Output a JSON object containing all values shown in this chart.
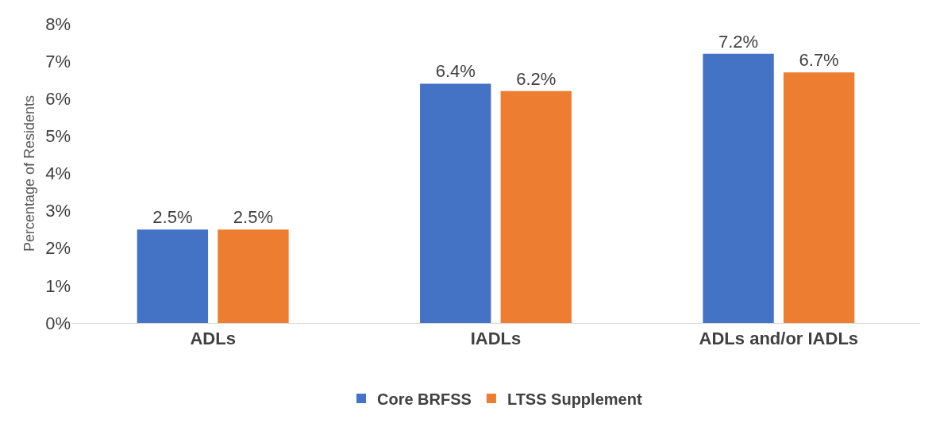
{
  "chart_data": {
    "type": "bar",
    "ylabel": "Percentage of Residents",
    "categories": [
      "ADLs",
      "IADLs",
      "ADLs and/or IADLs"
    ],
    "series": [
      {
        "name": "Core BRFSS",
        "color": "#4472c4",
        "values": [
          2.5,
          6.4,
          7.2
        ],
        "value_labels": [
          "2.5%",
          "6.4%",
          "7.2%"
        ]
      },
      {
        "name": "LTSS Supplement",
        "color": "#ed7d31",
        "values": [
          2.5,
          6.2,
          6.7
        ],
        "value_labels": [
          "2.5%",
          "6.2%",
          "6.7%"
        ]
      }
    ],
    "ylim": [
      0,
      8
    ],
    "yticks": [
      {
        "value": 0,
        "label": "0%"
      },
      {
        "value": 1,
        "label": "1%"
      },
      {
        "value": 2,
        "label": "2%"
      },
      {
        "value": 3,
        "label": "3%"
      },
      {
        "value": 4,
        "label": "4%"
      },
      {
        "value": 5,
        "label": "5%"
      },
      {
        "value": 6,
        "label": "6%"
      },
      {
        "value": 7,
        "label": "7%"
      },
      {
        "value": 8,
        "label": "8%"
      }
    ],
    "grid": false,
    "legend": "bottom"
  }
}
